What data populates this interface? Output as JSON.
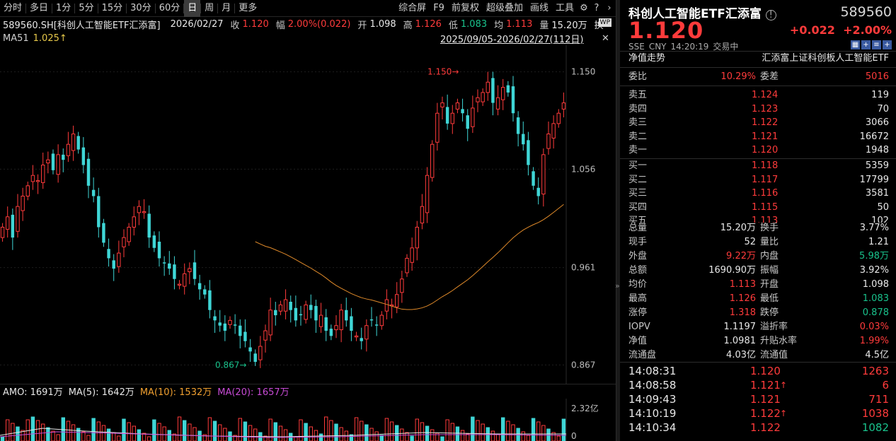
{
  "toolbar": {
    "tabs": [
      "分时",
      "多日",
      "1分",
      "5分",
      "15分",
      "30分",
      "60分",
      "日",
      "周",
      "月",
      "更多"
    ],
    "selected": "日",
    "right": [
      "综合屏",
      "F9",
      "前复权",
      "超级叠加",
      "画线",
      "工具"
    ]
  },
  "info": {
    "code_name": "589560.SH[科创人工智能ETF汇添富]",
    "date": "2026/02/27",
    "close_label": "收",
    "close": "1.120",
    "amp_label": "幅",
    "amp": "2.00%(0.022)",
    "open_label": "开",
    "open": "1.098",
    "high_label": "高",
    "high": "1.126",
    "low_label": "低",
    "low": "1.083",
    "avg_label": "均",
    "avg": "1.113",
    "vol_label": "量",
    "vol": "15.20万",
    "swap": "换"
  },
  "ma": {
    "label": "MA51",
    "value": "1.025↑",
    "range": "2025/09/05-2026/02/27(112日)"
  },
  "amo": {
    "label": "AMO: 1691万",
    "ma5": "MA(5): 1642万",
    "ma10": "MA(10): 1532万",
    "ma20": "MA(20): 1657万",
    "axis_top": "2.32亿",
    "axis_bottom": "0"
  },
  "chart_data": {
    "type": "candlestick",
    "y_ticks": [
      "1.150",
      "1.056",
      "0.961",
      "0.867"
    ],
    "ylim": [
      0.855,
      1.162
    ],
    "max_label": "1.150",
    "min_label": "0.867",
    "colors": {
      "up": "#ff3b3b",
      "down": "#3fd6d6",
      "ma": "#e08a2a"
    }
  },
  "quote": {
    "title": "科创人工智能ETF汇添富",
    "code": "589560",
    "price": "1.120",
    "change": "+0.022",
    "change_pct": "+2.00%",
    "market": "SSE",
    "currency": "CNY",
    "time": "14:20:19",
    "status": "交易中",
    "nav_label": "净值走势",
    "full_name": "汇添富上证科创板人工智能ETF",
    "weibi_label": "委比",
    "weibi": "10.29%",
    "weicha_label": "委差",
    "weicha": "5016",
    "asks": [
      {
        "label": "卖五",
        "price": "1.124",
        "vol": "119"
      },
      {
        "label": "卖四",
        "price": "1.123",
        "vol": "70"
      },
      {
        "label": "卖三",
        "price": "1.122",
        "vol": "3066"
      },
      {
        "label": "卖二",
        "price": "1.121",
        "vol": "16672"
      },
      {
        "label": "卖一",
        "price": "1.120",
        "vol": "1948"
      }
    ],
    "bids": [
      {
        "label": "买一",
        "price": "1.118",
        "vol": "5359"
      },
      {
        "label": "买二",
        "price": "1.117",
        "vol": "17799"
      },
      {
        "label": "买三",
        "price": "1.116",
        "vol": "3581"
      },
      {
        "label": "买四",
        "price": "1.115",
        "vol": "50"
      },
      {
        "label": "买五",
        "price": "1.113",
        "vol": "102"
      }
    ],
    "stats": [
      {
        "l1": "总量",
        "v1": "15.20万",
        "c1": "white",
        "l2": "换手",
        "v2": "3.77%",
        "c2": "white"
      },
      {
        "l1": "现手",
        "v1": "52",
        "c1": "white",
        "l2": "量比",
        "v2": "1.21",
        "c2": "white"
      },
      {
        "l1": "外盘",
        "v1": "9.22万",
        "c1": "red",
        "l2": "内盘",
        "v2": "5.98万",
        "c2": "green"
      },
      {
        "l1": "总额",
        "v1": "1690.90万",
        "c1": "white",
        "l2": "振幅",
        "v2": "3.92%",
        "c2": "white"
      },
      {
        "l1": "均价",
        "v1": "1.113",
        "c1": "red",
        "l2": "开盘",
        "v2": "1.098",
        "c2": "white"
      },
      {
        "l1": "最高",
        "v1": "1.126",
        "c1": "red",
        "l2": "最低",
        "v2": "1.083",
        "c2": "green"
      },
      {
        "l1": "涨停",
        "v1": "1.318",
        "c1": "red",
        "l2": "跌停",
        "v2": "0.878",
        "c2": "green"
      },
      {
        "l1": "IOPV",
        "v1": "1.1197",
        "c1": "white",
        "l2": "溢折率",
        "v2": "0.03%",
        "c2": "red"
      },
      {
        "l1": "净值",
        "v1": "1.0981",
        "c1": "white",
        "l2": "升贴水率",
        "v2": "1.99%",
        "c2": "red"
      },
      {
        "l1": "流通盘",
        "v1": "4.03亿",
        "c1": "white",
        "l2": "流通值",
        "v2": "4.5亿",
        "c2": "white"
      }
    ],
    "ticks": [
      {
        "time": "14:08:31",
        "price": "1.120",
        "arrow": "",
        "vol": "1263",
        "vc": "red"
      },
      {
        "time": "14:08:58",
        "price": "1.121",
        "arrow": "↑",
        "vol": "6",
        "vc": "red"
      },
      {
        "time": "14:09:43",
        "price": "1.121",
        "arrow": "",
        "vol": "711",
        "vc": "red"
      },
      {
        "time": "14:10:19",
        "price": "1.122",
        "arrow": "↑",
        "vol": "1038",
        "vc": "red"
      },
      {
        "time": "14:10:34",
        "price": "1.122",
        "arrow": "",
        "vol": "1082",
        "vc": "green"
      }
    ]
  }
}
